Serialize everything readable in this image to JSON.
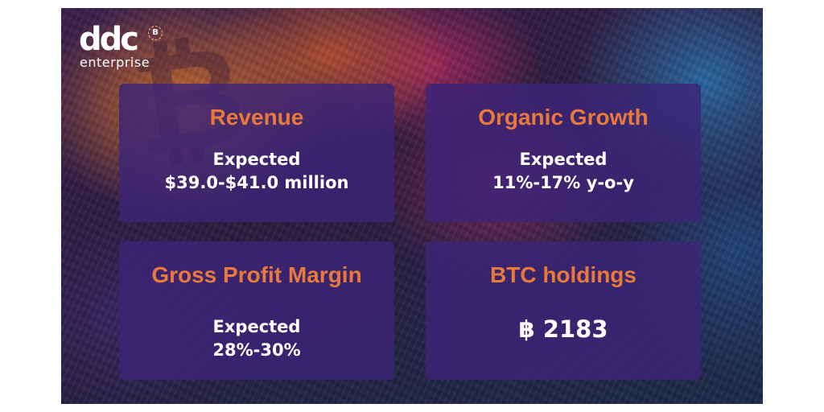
{
  "brand": {
    "logo_mark": "ddc",
    "logo_sub": "enterprise",
    "badge_icon": "bitcoin-icon",
    "accent_color": "#e8793a"
  },
  "cards": {
    "revenue": {
      "title": "Revenue",
      "line1": "Expected",
      "line2": "$39.0-$41.0 million"
    },
    "organic_growth": {
      "title": "Organic Growth",
      "line1": "Expected",
      "line2": "11%-17% y-o-y"
    },
    "gross_profit_margin": {
      "title": "Gross Profit Margin",
      "line1": "Expected",
      "line2": "28%-30%"
    },
    "btc_holdings": {
      "title": "BTC holdings",
      "symbol": "฿",
      "value": "2183"
    }
  }
}
